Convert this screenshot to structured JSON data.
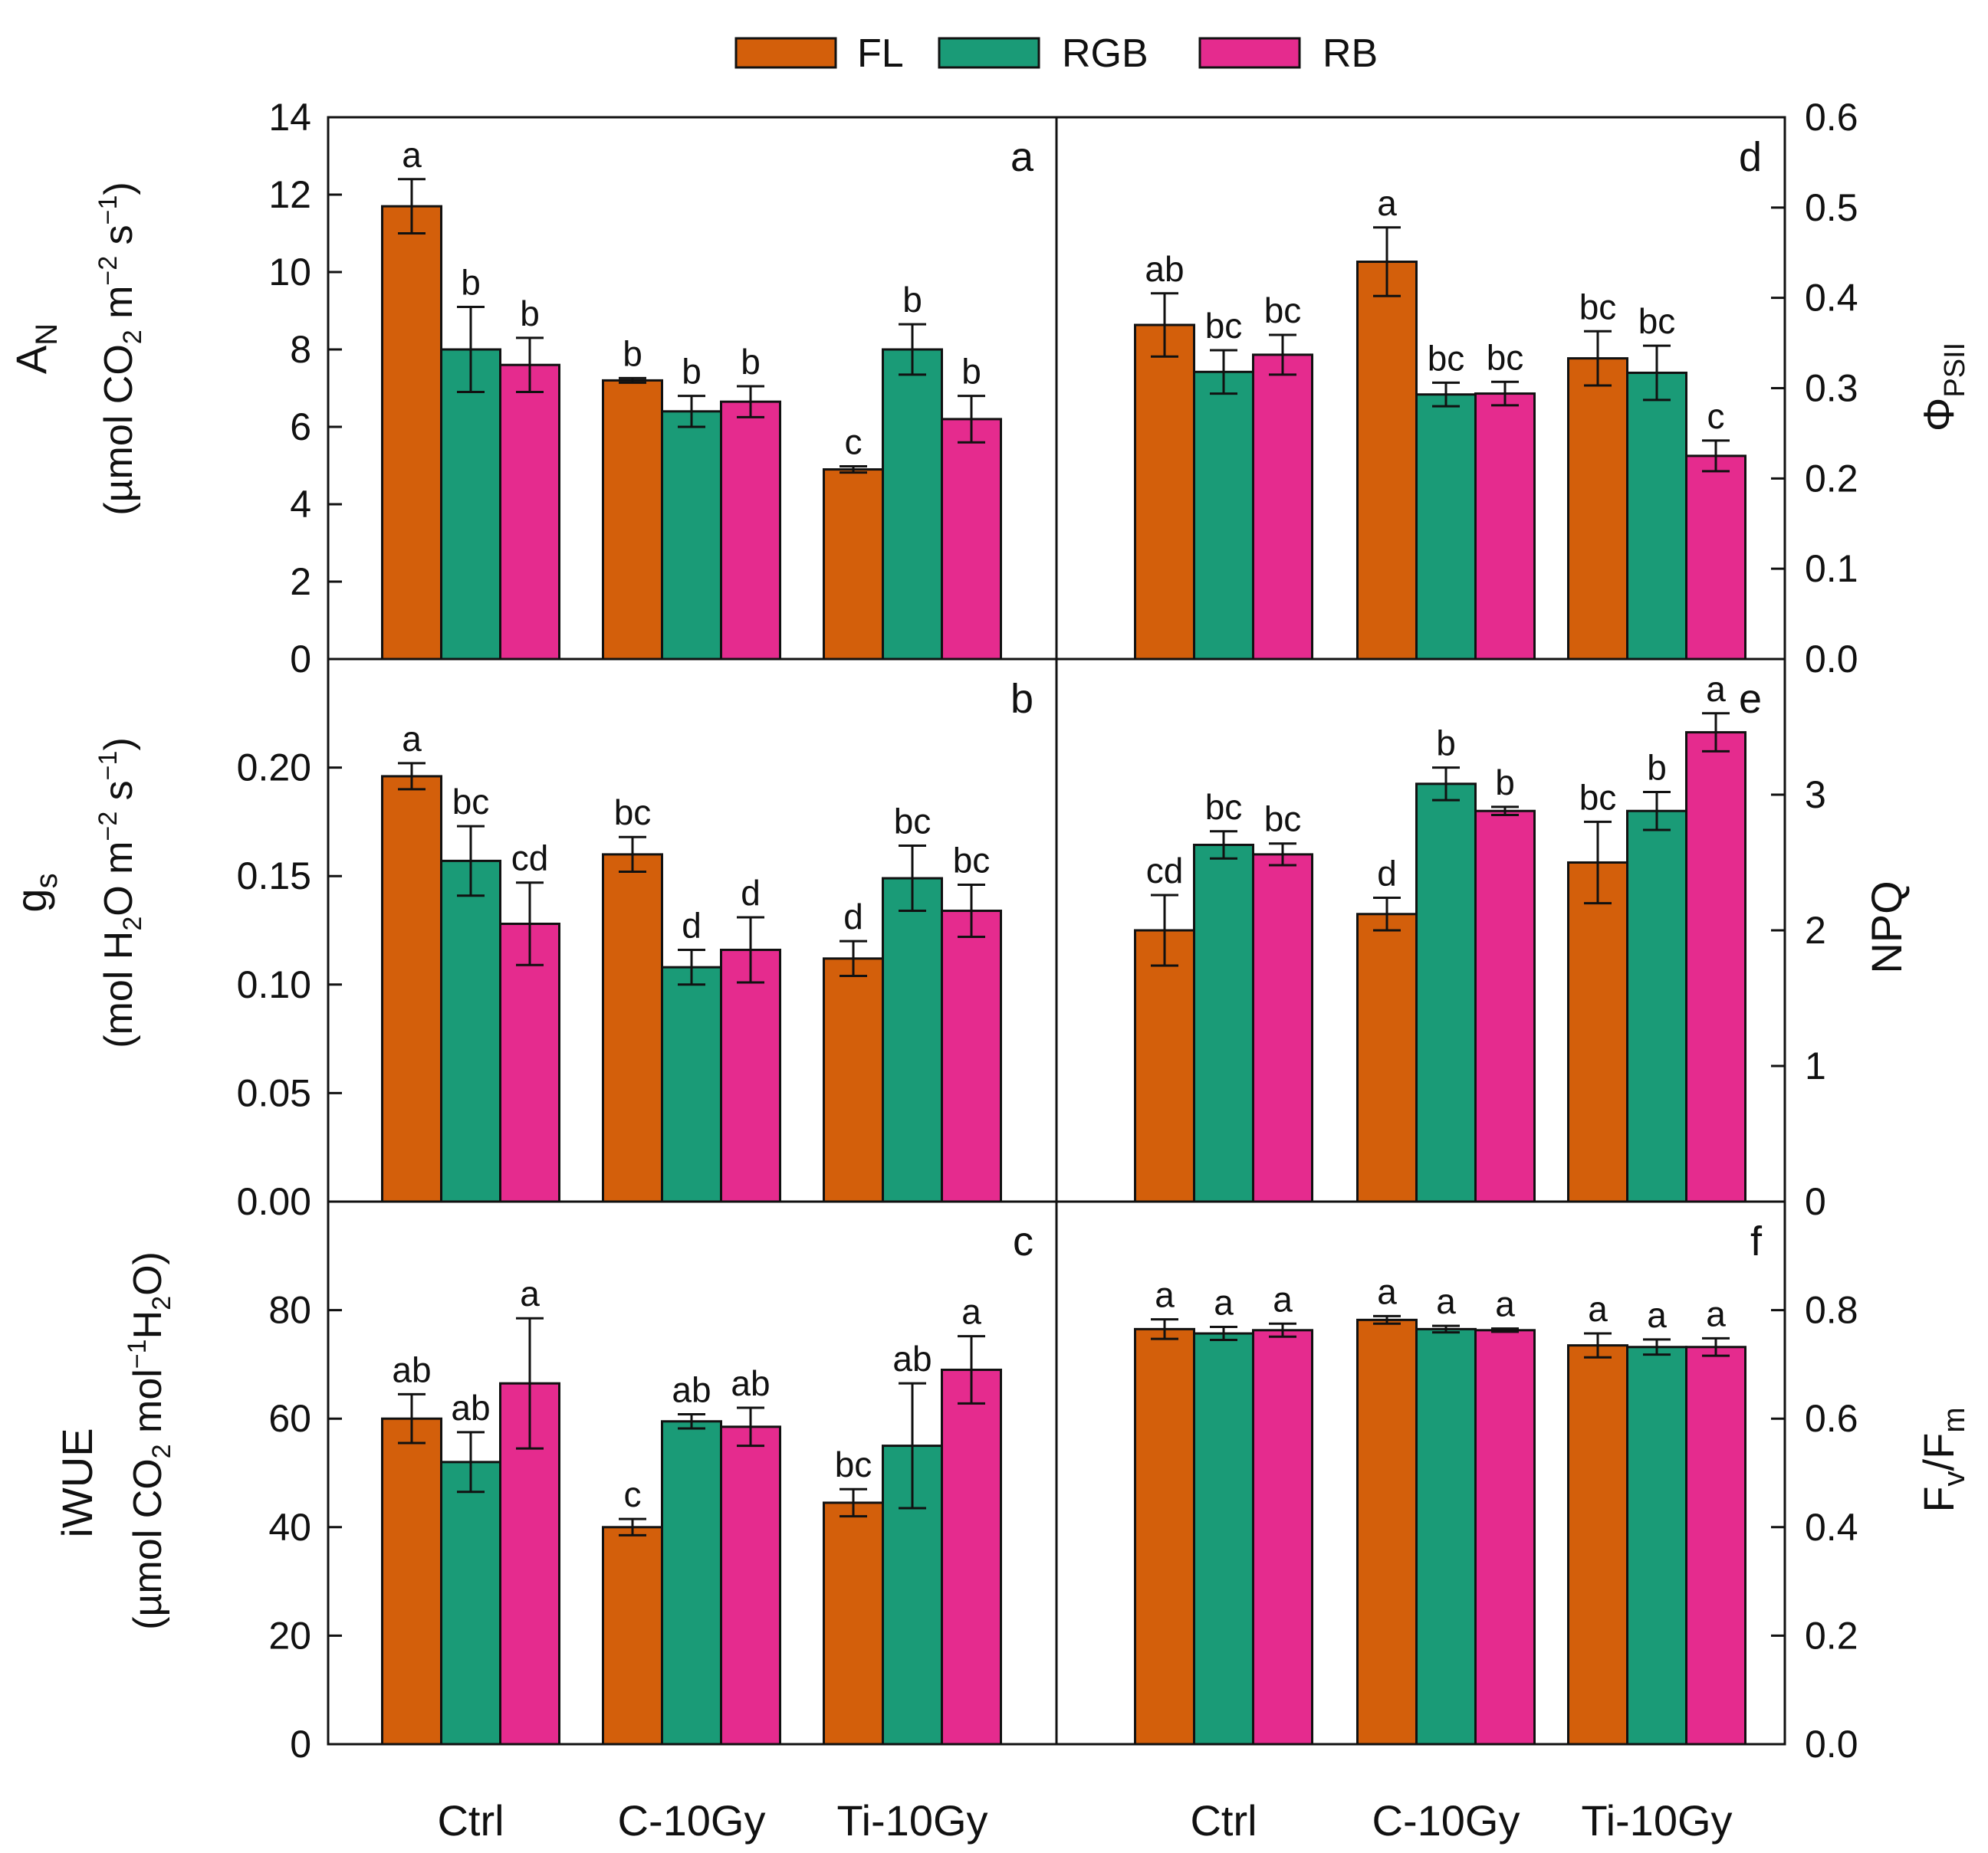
{
  "legend": {
    "entries": [
      {
        "label": "FL",
        "color": "#D35F0B"
      },
      {
        "label": "RGB",
        "color": "#1A9B77"
      },
      {
        "label": "RB",
        "color": "#E52B8E"
      }
    ]
  },
  "x_categories": [
    "Ctrl",
    "C-10Gy",
    "Ti-10Gy"
  ],
  "chart_data": [
    {
      "type": "bar",
      "panel": "a",
      "ylabel_main": "A",
      "ylabel_sub": "N",
      "ylabel_unit": {
        "pre": "(µmol CO",
        "s1": "2",
        "mid": " m",
        "s2": "−2",
        "mid2": " s",
        "s3": "−1",
        "post": ")"
      },
      "ylim": [
        0,
        14
      ],
      "yticks": [
        "0",
        "2",
        "4",
        "6",
        "8",
        "10",
        "12",
        "14"
      ],
      "categories": [
        "Ctrl",
        "C-10Gy",
        "Ti-10Gy"
      ],
      "series": [
        {
          "name": "FL",
          "values": [
            11.7,
            7.2,
            4.9
          ],
          "errors": [
            0.7,
            0.06,
            0.08
          ],
          "letters": [
            "a",
            "b",
            "c"
          ]
        },
        {
          "name": "RGB",
          "values": [
            8.0,
            6.4,
            8.0
          ],
          "errors": [
            1.1,
            0.4,
            0.65
          ],
          "letters": [
            "b",
            "b",
            "b"
          ]
        },
        {
          "name": "RB",
          "values": [
            7.6,
            6.65,
            6.2
          ],
          "errors": [
            0.7,
            0.4,
            0.6
          ],
          "letters": [
            "b",
            "b",
            "b"
          ]
        }
      ]
    },
    {
      "type": "bar",
      "panel": "b",
      "ylabel_main": "g",
      "ylabel_sub": "s",
      "ylabel_unit": {
        "pre": "(mol H",
        "s1": "2",
        "mid": "O m",
        "s2": "−2",
        "mid2": " s",
        "s3": "−1",
        "post": ")"
      },
      "ylim": [
        0,
        0.25
      ],
      "yticks": [
        "0.00",
        "0.05",
        "0.10",
        "0.15",
        "0.20"
      ],
      "categories": [
        "Ctrl",
        "C-10Gy",
        "Ti-10Gy"
      ],
      "series": [
        {
          "name": "FL",
          "values": [
            0.196,
            0.16,
            0.112
          ],
          "errors": [
            0.006,
            0.008,
            0.008
          ],
          "letters": [
            "a",
            "bc",
            "d"
          ]
        },
        {
          "name": "RGB",
          "values": [
            0.157,
            0.108,
            0.149
          ],
          "errors": [
            0.016,
            0.008,
            0.015
          ],
          "letters": [
            "bc",
            "d",
            "bc"
          ]
        },
        {
          "name": "RB",
          "values": [
            0.128,
            0.116,
            0.134
          ],
          "errors": [
            0.019,
            0.015,
            0.012
          ],
          "letters": [
            "cd",
            "d",
            "bc"
          ]
        }
      ]
    },
    {
      "type": "bar",
      "panel": "c",
      "ylabel_main": "iWUE",
      "ylabel_unit": {
        "pre": "(µmol CO",
        "s1": "2",
        "mid": " mol",
        "s2": "−1",
        "mid2": "H",
        "s3": "2",
        "post": "O)"
      },
      "ylim": [
        0,
        100
      ],
      "yticks": [
        "0",
        "20",
        "40",
        "60",
        "80"
      ],
      "categories": [
        "Ctrl",
        "C-10Gy",
        "Ti-10Gy"
      ],
      "series": [
        {
          "name": "FL",
          "values": [
            60,
            40,
            44.5
          ],
          "errors": [
            4.5,
            1.5,
            2.5
          ],
          "letters": [
            "ab",
            "c",
            "bc"
          ]
        },
        {
          "name": "RGB",
          "values": [
            52,
            59.5,
            55
          ],
          "errors": [
            5.5,
            1.3,
            11.5
          ],
          "letters": [
            "ab",
            "ab",
            "ab"
          ]
        },
        {
          "name": "RB",
          "values": [
            66.5,
            58.5,
            69
          ],
          "errors": [
            12,
            3.5,
            6.2
          ],
          "letters": [
            "a",
            "ab",
            "a"
          ]
        }
      ]
    },
    {
      "type": "bar",
      "panel": "d",
      "ylabel_main": "Φ",
      "ylabel_sub": "PSII",
      "ylim": [
        0,
        0.6
      ],
      "yticks": [
        "0.0",
        "0.1",
        "0.2",
        "0.3",
        "0.4",
        "0.5",
        "0.6"
      ],
      "categories": [
        "Ctrl",
        "C-10Gy",
        "Ti-10Gy"
      ],
      "series": [
        {
          "name": "FL",
          "values": [
            0.37,
            0.44,
            0.333
          ],
          "errors": [
            0.035,
            0.038,
            0.03
          ],
          "letters": [
            "ab",
            "a",
            "bc"
          ]
        },
        {
          "name": "RGB",
          "values": [
            0.318,
            0.293,
            0.317
          ],
          "errors": [
            0.024,
            0.013,
            0.03
          ],
          "letters": [
            "bc",
            "bc",
            "bc"
          ]
        },
        {
          "name": "RB",
          "values": [
            0.337,
            0.294,
            0.225
          ],
          "errors": [
            0.022,
            0.013,
            0.017
          ],
          "letters": [
            "bc",
            "bc",
            "c"
          ]
        }
      ]
    },
    {
      "type": "bar",
      "panel": "e",
      "ylabel_main": "NPQ",
      "ylim": [
        0,
        4
      ],
      "yticks": [
        "0",
        "1",
        "2",
        "3"
      ],
      "categories": [
        "Ctrl",
        "C-10Gy",
        "Ti-10Gy"
      ],
      "series": [
        {
          "name": "FL",
          "values": [
            2.0,
            2.12,
            2.5
          ],
          "errors": [
            0.26,
            0.12,
            0.3
          ],
          "letters": [
            "cd",
            "d",
            "bc"
          ]
        },
        {
          "name": "RGB",
          "values": [
            2.63,
            3.08,
            2.88
          ],
          "errors": [
            0.1,
            0.12,
            0.14
          ],
          "letters": [
            "bc",
            "b",
            "b"
          ]
        },
        {
          "name": "RB",
          "values": [
            2.56,
            2.88,
            3.46
          ],
          "errors": [
            0.08,
            0.03,
            0.14
          ],
          "letters": [
            "bc",
            "b",
            "a"
          ]
        }
      ]
    },
    {
      "type": "bar",
      "panel": "f",
      "ylabel_main": "F",
      "ylabel_sub": "v",
      "ylabel_mid": "/F",
      "ylabel_sub2": "m",
      "ylim": [
        0,
        1.0
      ],
      "yticks": [
        "0.0",
        "0.2",
        "0.4",
        "0.6",
        "0.8"
      ],
      "categories": [
        "Ctrl",
        "C-10Gy",
        "Ti-10Gy"
      ],
      "series": [
        {
          "name": "FL",
          "values": [
            0.765,
            0.782,
            0.735
          ],
          "errors": [
            0.018,
            0.007,
            0.022
          ],
          "letters": [
            "a",
            "a",
            "a"
          ]
        },
        {
          "name": "RGB",
          "values": [
            0.757,
            0.765,
            0.732
          ],
          "errors": [
            0.012,
            0.006,
            0.014
          ],
          "letters": [
            "a",
            "a",
            "a"
          ]
        },
        {
          "name": "RB",
          "values": [
            0.763,
            0.763,
            0.732
          ],
          "errors": [
            0.012,
            0.003,
            0.016
          ],
          "letters": [
            "a",
            "a",
            "a"
          ]
        }
      ]
    }
  ]
}
